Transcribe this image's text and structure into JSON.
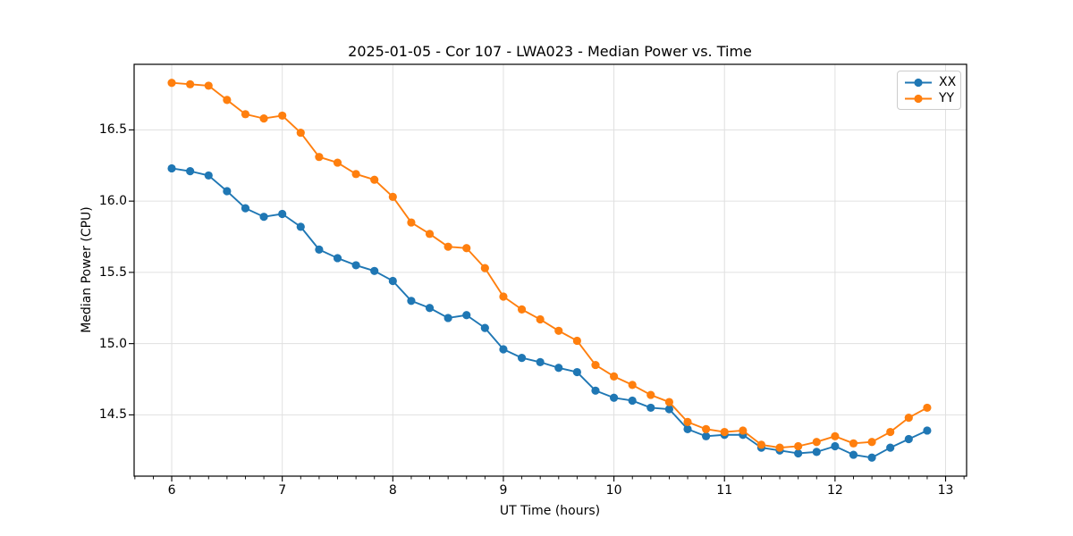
{
  "title": "2025-01-05 - Cor 107 - LWA023 - Median Power vs. Time",
  "colors": {
    "series_xx": "#1f77b4",
    "series_yy": "#ff7f0e",
    "grid": "#e0e0e0",
    "spine": "#000000",
    "legend_border": "#cccccc"
  },
  "chart_data": {
    "type": "line",
    "title": "2025-01-05 - Cor 107 - LWA023 - Median Power vs. Time",
    "xlabel": "UT Time (hours)",
    "ylabel": "Median Power (CPU)",
    "xlim": [
      5.66,
      13.19
    ],
    "ylim": [
      14.07,
      16.96
    ],
    "grid": true,
    "legend_position": "upper right",
    "x_ticks": [
      6,
      7,
      8,
      9,
      10,
      11,
      12,
      13
    ],
    "x_tick_labels": [
      "6",
      "7",
      "8",
      "9",
      "10",
      "11",
      "12",
      "13"
    ],
    "x_minor_tick_step": 0.16667,
    "y_ticks": [
      14.5,
      15.0,
      15.5,
      16.0,
      16.5
    ],
    "y_tick_labels": [
      "14.5",
      "15.0",
      "15.5",
      "16.0",
      "16.5"
    ],
    "x": [
      6.0,
      6.1667,
      6.3333,
      6.5,
      6.6667,
      6.8333,
      7.0,
      7.1667,
      7.3333,
      7.5,
      7.6667,
      7.8333,
      8.0,
      8.1667,
      8.3333,
      8.5,
      8.6667,
      8.8333,
      9.0,
      9.1667,
      9.3333,
      9.5,
      9.6667,
      9.8333,
      10.0,
      10.1667,
      10.3333,
      10.5,
      10.6667,
      10.8333,
      11.0,
      11.1667,
      11.3333,
      11.5,
      11.6667,
      11.8333,
      12.0,
      12.1667,
      12.3333,
      12.5,
      12.6667,
      12.8333
    ],
    "series": [
      {
        "name": "XX",
        "color": "#1f77b4",
        "values": [
          16.23,
          16.21,
          16.18,
          16.07,
          15.95,
          15.89,
          15.91,
          15.82,
          15.66,
          15.6,
          15.55,
          15.51,
          15.44,
          15.3,
          15.25,
          15.18,
          15.2,
          15.11,
          14.96,
          14.9,
          14.87,
          14.83,
          14.8,
          14.67,
          14.62,
          14.6,
          14.55,
          14.54,
          14.4,
          14.35,
          14.36,
          14.36,
          14.27,
          14.25,
          14.23,
          14.24,
          14.28,
          14.22,
          14.2,
          14.27,
          14.33,
          14.39
        ]
      },
      {
        "name": "YY",
        "color": "#ff7f0e",
        "values": [
          16.83,
          16.82,
          16.81,
          16.71,
          16.61,
          16.58,
          16.6,
          16.48,
          16.31,
          16.27,
          16.19,
          16.15,
          16.03,
          15.85,
          15.77,
          15.68,
          15.67,
          15.53,
          15.33,
          15.24,
          15.17,
          15.09,
          15.02,
          14.85,
          14.77,
          14.71,
          14.64,
          14.59,
          14.45,
          14.4,
          14.38,
          14.39,
          14.29,
          14.27,
          14.28,
          14.31,
          14.35,
          14.3,
          14.31,
          14.38,
          14.48,
          14.55
        ]
      }
    ]
  }
}
